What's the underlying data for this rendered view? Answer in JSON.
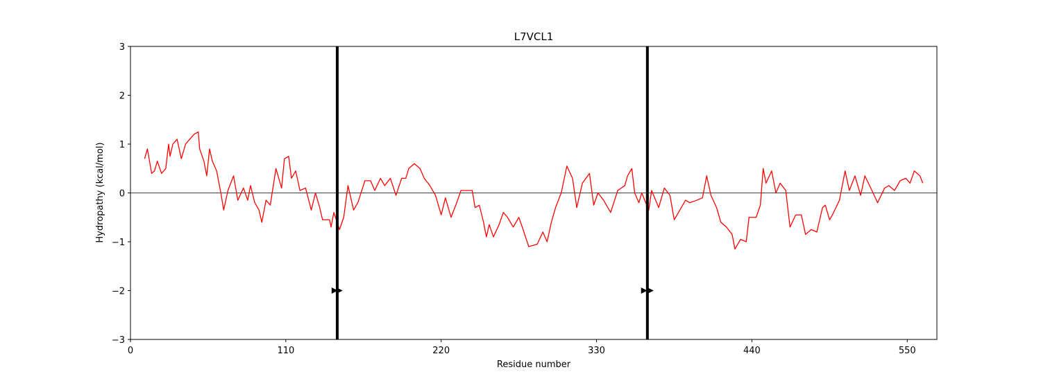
{
  "chart_data": {
    "type": "line",
    "title": "L7VCL1",
    "x_label": "Residue number",
    "y_label": "Hydropathy (kcal/mol)",
    "xlim": [
      0,
      571
    ],
    "xticks": [
      0,
      110,
      220,
      330,
      440,
      550
    ],
    "ylim": [
      -3,
      3
    ],
    "yticks": [
      {
        "value": -3,
        "label": "−3"
      },
      {
        "value": -2,
        "label": "−2"
      },
      {
        "value": -1,
        "label": "−1"
      },
      0,
      1,
      2,
      3
    ],
    "hline": 0,
    "vlines": [
      146.4,
      366
    ],
    "markers": {
      "x": [
        144.4,
        147.8,
        363.5,
        368
      ],
      "y": [
        -2,
        -2,
        -2,
        -2
      ]
    },
    "x": [
      10,
      12,
      15,
      17,
      19,
      22,
      25,
      27,
      28,
      30,
      33,
      36,
      39,
      42,
      45,
      48,
      49,
      52,
      54,
      56,
      58,
      61,
      64,
      66,
      69,
      71,
      73,
      76,
      80,
      83,
      85,
      88,
      91,
      93,
      96,
      99,
      103,
      107,
      109,
      112,
      114,
      117,
      120,
      124,
      128,
      131,
      134,
      136,
      141,
      142,
      144,
      148,
      151,
      154,
      158,
      161,
      166,
      170,
      173,
      177,
      180,
      184,
      188,
      192,
      195,
      197,
      201,
      205,
      208,
      212,
      216,
      220,
      223,
      227,
      231,
      234,
      242,
      244,
      247,
      250,
      252,
      254,
      257,
      261,
      264,
      267,
      271,
      275,
      278,
      282,
      288,
      292,
      295,
      298,
      301,
      305,
      309,
      313,
      316,
      320,
      325,
      328,
      331,
      335,
      340,
      345,
      350,
      352,
      355,
      357,
      360,
      362,
      367,
      369,
      374,
      378,
      382,
      385,
      389,
      393,
      396,
      401,
      405,
      408,
      411,
      415,
      418,
      422,
      426,
      428,
      432,
      436,
      438,
      443,
      446,
      448,
      450,
      454,
      457,
      460,
      464,
      467,
      471,
      475,
      478,
      482,
      486,
      490,
      492,
      495,
      497,
      502,
      506,
      509,
      513,
      517,
      520,
      525,
      529,
      534,
      537,
      541,
      545,
      549,
      552,
      555,
      559,
      561
    ],
    "series": [
      {
        "color": "#ff0000",
        "values": [
          0.7,
          0.9,
          0.4,
          0.45,
          0.65,
          0.4,
          0.5,
          1.0,
          0.75,
          1.0,
          1.1,
          0.7,
          1.0,
          1.1,
          1.2,
          1.25,
          0.9,
          0.65,
          0.35,
          0.9,
          0.65,
          0.45,
          0.0,
          -0.35,
          0.05,
          0.2,
          0.35,
          -0.15,
          0.1,
          -0.15,
          0.15,
          -0.2,
          -0.35,
          -0.6,
          -0.15,
          -0.25,
          0.5,
          0.1,
          0.7,
          0.75,
          0.3,
          0.45,
          0.05,
          0.1,
          -0.35,
          0.0,
          -0.3,
          -0.55,
          -0.55,
          -0.7,
          -0.4,
          -0.75,
          -0.5,
          0.15,
          -0.35,
          -0.2,
          0.25,
          0.25,
          0.05,
          0.3,
          0.15,
          0.3,
          -0.05,
          0.3,
          0.3,
          0.5,
          0.6,
          0.5,
          0.3,
          0.15,
          -0.05,
          -0.45,
          -0.1,
          -0.5,
          -0.2,
          0.05,
          0.05,
          -0.3,
          -0.25,
          -0.6,
          -0.9,
          -0.65,
          -0.9,
          -0.65,
          -0.4,
          -0.5,
          -0.7,
          -0.5,
          -0.75,
          -1.1,
          -1.05,
          -0.8,
          -1.0,
          -0.6,
          -0.3,
          0.0,
          0.55,
          0.3,
          -0.3,
          0.2,
          0.4,
          -0.25,
          0.0,
          -0.15,
          -0.4,
          0.05,
          0.15,
          0.35,
          0.5,
          0.0,
          -0.2,
          0.0,
          -0.35,
          0.05,
          -0.3,
          0.1,
          -0.05,
          -0.55,
          -0.35,
          -0.15,
          -0.2,
          -0.15,
          -0.1,
          0.35,
          -0.05,
          -0.3,
          -0.6,
          -0.7,
          -0.85,
          -1.15,
          -0.95,
          -1.0,
          -0.5,
          -0.5,
          -0.25,
          0.5,
          0.2,
          0.45,
          0.0,
          0.2,
          0.05,
          -0.7,
          -0.45,
          -0.45,
          -0.85,
          -0.75,
          -0.8,
          -0.3,
          -0.25,
          -0.55,
          -0.45,
          -0.15,
          0.45,
          0.05,
          0.35,
          -0.05,
          0.35,
          0.05,
          -0.2,
          0.1,
          0.15,
          0.05,
          0.25,
          0.3,
          0.2,
          0.45,
          0.35,
          0.2
        ]
      }
    ]
  }
}
